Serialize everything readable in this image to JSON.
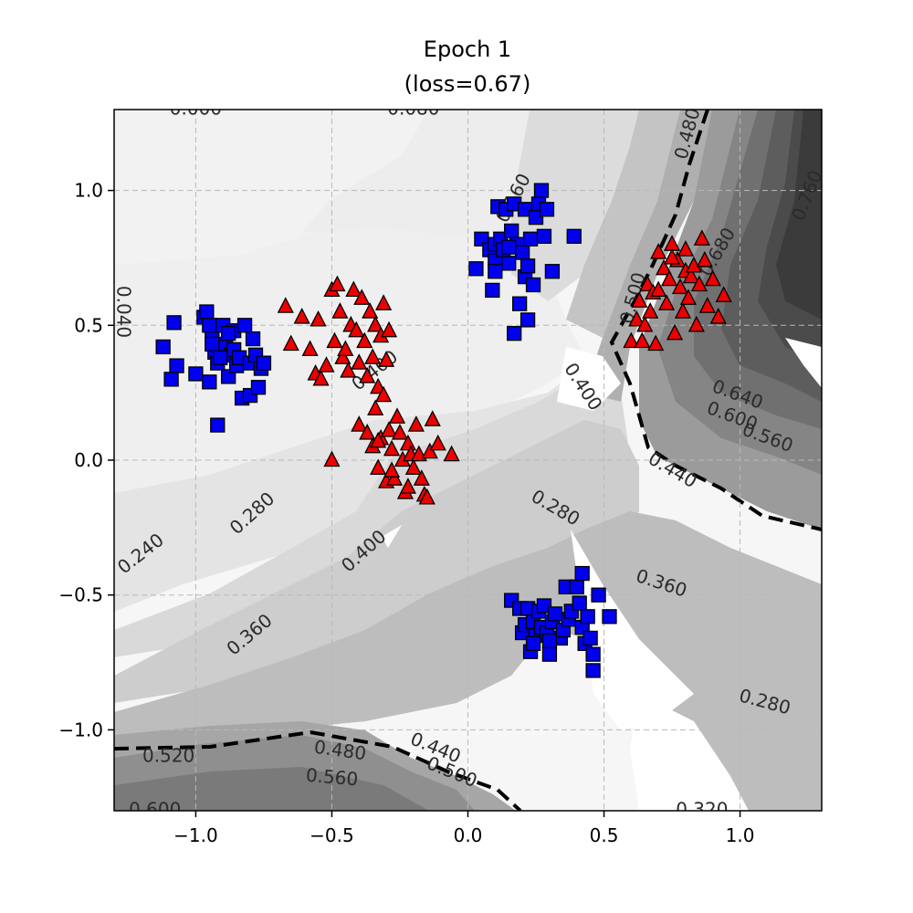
{
  "chart_data": {
    "type": "scatter",
    "title_line1": "Epoch 1",
    "title_line2": "(loss=0.67)",
    "xlabel": "",
    "ylabel": "",
    "xlim": [
      -1.3,
      1.3
    ],
    "ylim": [
      -1.3,
      1.3
    ],
    "xticks": [
      {
        "value": -1.0,
        "label": "−1.0"
      },
      {
        "value": -0.5,
        "label": "−0.5"
      },
      {
        "value": 0.0,
        "label": "0.0"
      },
      {
        "value": 0.5,
        "label": "0.5"
      },
      {
        "value": 1.0,
        "label": "1.0"
      }
    ],
    "yticks": [
      {
        "value": 1.0,
        "label": "1.0"
      },
      {
        "value": 0.5,
        "label": "0.5"
      },
      {
        "value": 0.0,
        "label": "0.0"
      },
      {
        "value": -0.5,
        "label": "−0.5"
      },
      {
        "value": -1.0,
        "label": "−1.0"
      }
    ],
    "grid": true,
    "decision_boundary_level": 0.5,
    "contour_labels": [
      {
        "text": "0.000",
        "x": -1.0,
        "y": 1.3,
        "rot": 0
      },
      {
        "text": "0.080",
        "x": -0.2,
        "y": 1.3,
        "rot": 0
      },
      {
        "text": "0.040",
        "x": -1.27,
        "y": 0.55,
        "rot": 90
      },
      {
        "text": "0.160",
        "x": 0.17,
        "y": 0.97,
        "rot": -62
      },
      {
        "text": "0.400",
        "x": -0.34,
        "y": 0.33,
        "rot": -38
      },
      {
        "text": "0.280",
        "x": -0.79,
        "y": -0.2,
        "rot": -42
      },
      {
        "text": "0.240",
        "x": -1.2,
        "y": -0.35,
        "rot": -38
      },
      {
        "text": "0.400",
        "x": -0.38,
        "y": -0.34,
        "rot": -42
      },
      {
        "text": "0.360",
        "x": -0.8,
        "y": -0.65,
        "rot": -40
      },
      {
        "text": "0.400",
        "x": 0.42,
        "y": 0.27,
        "rot": 57
      },
      {
        "text": "0.280",
        "x": 0.32,
        "y": -0.18,
        "rot": 30
      },
      {
        "text": "0.360",
        "x": 0.71,
        "y": -0.46,
        "rot": 18
      },
      {
        "text": "0.440",
        "x": 0.75,
        "y": -0.04,
        "rot": 30
      },
      {
        "text": "0.640",
        "x": 0.99,
        "y": 0.24,
        "rot": 20
      },
      {
        "text": "0.600",
        "x": 0.97,
        "y": 0.16,
        "rot": 20
      },
      {
        "text": "0.560",
        "x": 1.1,
        "y": 0.08,
        "rot": 20
      },
      {
        "text": "0.500",
        "x": 0.61,
        "y": 0.6,
        "rot": -75
      },
      {
        "text": "0.480",
        "x": 0.81,
        "y": 1.21,
        "rot": -75
      },
      {
        "text": "0.680",
        "x": 0.92,
        "y": 0.77,
        "rot": -60
      },
      {
        "text": "0.760",
        "x": 1.25,
        "y": 0.98,
        "rot": -68
      },
      {
        "text": "0.280",
        "x": 1.09,
        "y": -0.9,
        "rot": 15
      },
      {
        "text": "0.320",
        "x": 0.86,
        "y": -1.3,
        "rot": 0
      },
      {
        "text": "0.520",
        "x": -1.1,
        "y": -1.1,
        "rot": 0
      },
      {
        "text": "0.480",
        "x": -0.47,
        "y": -1.08,
        "rot": 8
      },
      {
        "text": "0.440",
        "x": -0.12,
        "y": -1.07,
        "rot": 22
      },
      {
        "text": "0.500",
        "x": -0.06,
        "y": -1.16,
        "rot": 22
      },
      {
        "text": "0.560",
        "x": -0.5,
        "y": -1.18,
        "rot": 5
      },
      {
        "text": "0.600",
        "x": -1.15,
        "y": -1.3,
        "rot": 0
      }
    ],
    "series": [
      {
        "marker": "square",
        "color": "#0000ee",
        "points": [
          [
            -1.12,
            0.42
          ],
          [
            -1.08,
            0.51
          ],
          [
            -1.07,
            0.35
          ],
          [
            -1.09,
            0.3
          ],
          [
            -1.0,
            0.32
          ],
          [
            -0.97,
            0.53
          ],
          [
            -0.96,
            0.55
          ],
          [
            -0.95,
            0.5
          ],
          [
            -0.95,
            0.29
          ],
          [
            -0.94,
            0.45
          ],
          [
            -0.93,
            0.4
          ],
          [
            -0.92,
            0.36
          ],
          [
            -0.92,
            0.13
          ],
          [
            -0.91,
            0.43
          ],
          [
            -0.9,
            0.5
          ],
          [
            -0.89,
            0.42
          ],
          [
            -0.88,
            0.31
          ],
          [
            -0.87,
            0.39
          ],
          [
            -0.86,
            0.48
          ],
          [
            -0.86,
            0.41
          ],
          [
            -0.85,
            0.35
          ],
          [
            -0.84,
            0.38
          ],
          [
            -0.83,
            0.23
          ],
          [
            -0.82,
            0.5
          ],
          [
            -0.8,
            0.36
          ],
          [
            -0.8,
            0.24
          ],
          [
            -0.79,
            0.45
          ],
          [
            -0.78,
            0.39
          ],
          [
            -0.77,
            0.27
          ],
          [
            -0.76,
            0.34
          ],
          [
            -0.75,
            0.36
          ],
          [
            -0.91,
            0.38
          ],
          [
            -0.88,
            0.47
          ],
          [
            -0.94,
            0.43
          ],
          [
            0.03,
            0.71
          ],
          [
            0.05,
            0.82
          ],
          [
            0.08,
            0.78
          ],
          [
            0.09,
            0.63
          ],
          [
            0.1,
            0.74
          ],
          [
            0.1,
            0.8
          ],
          [
            0.11,
            0.94
          ],
          [
            0.12,
            0.82
          ],
          [
            0.13,
            0.78
          ],
          [
            0.14,
            0.93
          ],
          [
            0.15,
            0.73
          ],
          [
            0.16,
            0.85
          ],
          [
            0.17,
            0.47
          ],
          [
            0.17,
            0.95
          ],
          [
            0.18,
            0.8
          ],
          [
            0.19,
            0.58
          ],
          [
            0.2,
            0.77
          ],
          [
            0.21,
            0.68
          ],
          [
            0.21,
            0.93
          ],
          [
            0.22,
            0.52
          ],
          [
            0.23,
            0.82
          ],
          [
            0.24,
            0.65
          ],
          [
            0.25,
            0.9
          ],
          [
            0.26,
            0.95
          ],
          [
            0.27,
            1.0
          ],
          [
            0.28,
            0.83
          ],
          [
            0.29,
            0.93
          ],
          [
            0.31,
            0.7
          ],
          [
            0.39,
            0.83
          ],
          [
            0.22,
            0.72
          ],
          [
            0.15,
            0.79
          ],
          [
            0.1,
            0.7
          ],
          [
            0.16,
            -0.52
          ],
          [
            0.19,
            -0.55
          ],
          [
            0.2,
            -0.64
          ],
          [
            0.21,
            -0.61
          ],
          [
            0.22,
            -0.55
          ],
          [
            0.23,
            -0.71
          ],
          [
            0.24,
            -0.6
          ],
          [
            0.25,
            -0.65
          ],
          [
            0.26,
            -0.56
          ],
          [
            0.27,
            -0.62
          ],
          [
            0.28,
            -0.54
          ],
          [
            0.29,
            -0.64
          ],
          [
            0.3,
            -0.72
          ],
          [
            0.31,
            -0.6
          ],
          [
            0.32,
            -0.57
          ],
          [
            0.34,
            -0.66
          ],
          [
            0.35,
            -0.63
          ],
          [
            0.36,
            -0.47
          ],
          [
            0.37,
            -0.59
          ],
          [
            0.38,
            -0.56
          ],
          [
            0.4,
            -0.47
          ],
          [
            0.41,
            -0.53
          ],
          [
            0.42,
            -0.42
          ],
          [
            0.42,
            -0.62
          ],
          [
            0.43,
            -0.68
          ],
          [
            0.44,
            -0.58
          ],
          [
            0.45,
            -0.66
          ],
          [
            0.46,
            -0.72
          ],
          [
            0.46,
            -0.78
          ],
          [
            0.48,
            -0.5
          ],
          [
            0.52,
            -0.58
          ],
          [
            0.3,
            -0.67
          ],
          [
            0.24,
            -0.68
          ]
        ]
      },
      {
        "marker": "triangle",
        "color": "#ee0000",
        "points": [
          [
            -0.67,
            0.57
          ],
          [
            -0.65,
            0.43
          ],
          [
            -0.61,
            0.53
          ],
          [
            -0.58,
            0.41
          ],
          [
            -0.56,
            0.32
          ],
          [
            -0.55,
            0.52
          ],
          [
            -0.54,
            0.3
          ],
          [
            -0.52,
            0.35
          ],
          [
            -0.5,
            0.63
          ],
          [
            -0.49,
            0.44
          ],
          [
            -0.48,
            0.65
          ],
          [
            -0.47,
            0.55
          ],
          [
            -0.46,
            0.38
          ],
          [
            -0.45,
            0.41
          ],
          [
            -0.44,
            0.33
          ],
          [
            -0.43,
            0.5
          ],
          [
            -0.42,
            0.63
          ],
          [
            -0.41,
            0.48
          ],
          [
            -0.4,
            0.36
          ],
          [
            -0.39,
            0.6
          ],
          [
            -0.38,
            0.44
          ],
          [
            -0.37,
            0.31
          ],
          [
            -0.36,
            0.55
          ],
          [
            -0.35,
            0.38
          ],
          [
            -0.34,
            0.5
          ],
          [
            -0.33,
            0.27
          ],
          [
            -0.32,
            0.46
          ],
          [
            -0.31,
            0.58
          ],
          [
            -0.3,
            0.37
          ],
          [
            -0.29,
            0.48
          ],
          [
            -0.5,
            -0.0
          ],
          [
            -0.4,
            0.13
          ],
          [
            -0.37,
            0.1
          ],
          [
            -0.35,
            0.05
          ],
          [
            -0.34,
            0.19
          ],
          [
            -0.33,
            -0.03
          ],
          [
            -0.32,
            0.08
          ],
          [
            -0.31,
            0.24
          ],
          [
            -0.3,
            -0.08
          ],
          [
            -0.29,
            0.11
          ],
          [
            -0.28,
            0.04
          ],
          [
            -0.27,
            -0.07
          ],
          [
            -0.26,
            0.16
          ],
          [
            -0.25,
            0.1
          ],
          [
            -0.24,
            0.0
          ],
          [
            -0.23,
            -0.12
          ],
          [
            -0.22,
            0.06
          ],
          [
            -0.21,
            0.02
          ],
          [
            -0.2,
            -0.03
          ],
          [
            -0.19,
            0.13
          ],
          [
            -0.18,
            0.02
          ],
          [
            -0.17,
            -0.07
          ],
          [
            -0.16,
            -0.13
          ],
          [
            -0.15,
            -0.14
          ],
          [
            -0.14,
            0.03
          ],
          [
            -0.13,
            0.15
          ],
          [
            -0.11,
            0.06
          ],
          [
            -0.06,
            0.02
          ],
          [
            -0.28,
            -0.04
          ],
          [
            -0.22,
            -0.1
          ],
          [
            -0.33,
            0.07
          ],
          [
            0.6,
            0.44
          ],
          [
            0.62,
            0.52
          ],
          [
            0.63,
            0.59
          ],
          [
            0.64,
            0.44
          ],
          [
            0.65,
            0.5
          ],
          [
            0.66,
            0.65
          ],
          [
            0.67,
            0.55
          ],
          [
            0.68,
            0.62
          ],
          [
            0.69,
            0.43
          ],
          [
            0.7,
            0.77
          ],
          [
            0.72,
            0.71
          ],
          [
            0.73,
            0.58
          ],
          [
            0.74,
            0.67
          ],
          [
            0.75,
            0.8
          ],
          [
            0.76,
            0.47
          ],
          [
            0.77,
            0.74
          ],
          [
            0.78,
            0.64
          ],
          [
            0.79,
            0.55
          ],
          [
            0.8,
            0.7
          ],
          [
            0.81,
            0.6
          ],
          [
            0.82,
            0.68
          ],
          [
            0.83,
            0.72
          ],
          [
            0.84,
            0.5
          ],
          [
            0.85,
            0.65
          ],
          [
            0.86,
            0.82
          ],
          [
            0.87,
            0.74
          ],
          [
            0.88,
            0.57
          ],
          [
            0.9,
            0.67
          ],
          [
            0.92,
            0.53
          ],
          [
            0.94,
            0.61
          ],
          [
            0.75,
            0.75
          ],
          [
            0.8,
            0.78
          ],
          [
            0.7,
            0.63
          ]
        ]
      }
    ]
  }
}
